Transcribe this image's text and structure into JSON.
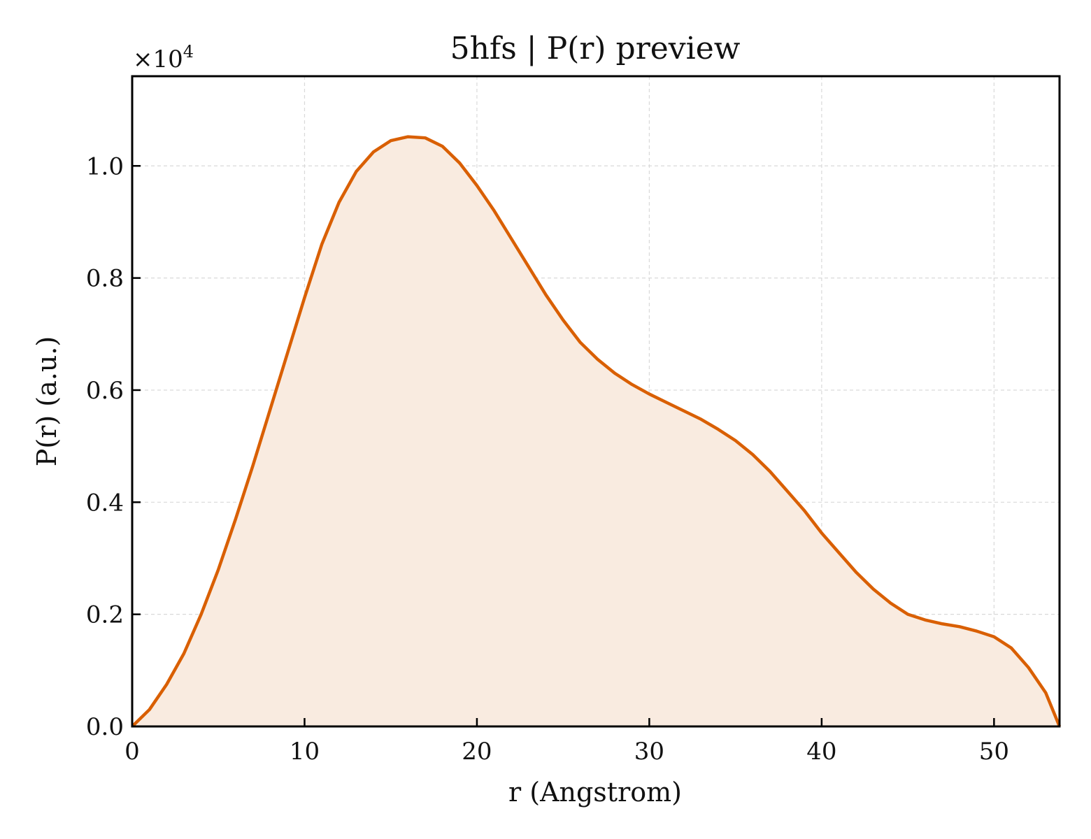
{
  "chart_data": {
    "type": "area",
    "title": "5hfs | P(r) preview",
    "xlabel": "r (Angstrom)",
    "ylabel": "P(r) (a.u.)",
    "y_multiplier": {
      "base": "×10",
      "exponent": "4"
    },
    "xlim": [
      0,
      53.8
    ],
    "ylim": [
      0,
      1.16
    ],
    "x_ticks": [
      0,
      10,
      20,
      30,
      40,
      50
    ],
    "x_tick_labels": [
      "0",
      "10",
      "20",
      "30",
      "40",
      "50"
    ],
    "y_ticks": [
      0.0,
      0.2,
      0.4,
      0.6,
      0.8,
      1.0
    ],
    "y_tick_labels": [
      "0.0",
      "0.2",
      "0.4",
      "0.6",
      "0.8",
      "1.0"
    ],
    "grid": true,
    "line_color": "#d95f02",
    "fill_color": "#f9ebe0",
    "series": [
      {
        "x": [
          0,
          1,
          2,
          3,
          4,
          5,
          6,
          7,
          8,
          9,
          10,
          11,
          12,
          13,
          14,
          15,
          16,
          17,
          18,
          19,
          20,
          21,
          22,
          23,
          24,
          25,
          26,
          27,
          28,
          29,
          30,
          31,
          32,
          33,
          34,
          35,
          36,
          37,
          38,
          39,
          40,
          41,
          42,
          43,
          44,
          45,
          46,
          47,
          48,
          49,
          50,
          51,
          52,
          53,
          53.8
        ],
        "y": [
          0.0,
          0.03,
          0.075,
          0.13,
          0.2,
          0.28,
          0.37,
          0.465,
          0.565,
          0.665,
          0.765,
          0.86,
          0.935,
          0.99,
          1.025,
          1.045,
          1.052,
          1.05,
          1.035,
          1.005,
          0.965,
          0.92,
          0.87,
          0.82,
          0.77,
          0.725,
          0.685,
          0.655,
          0.63,
          0.61,
          0.593,
          0.578,
          0.563,
          0.548,
          0.53,
          0.51,
          0.485,
          0.455,
          0.42,
          0.385,
          0.345,
          0.31,
          0.275,
          0.245,
          0.22,
          0.2,
          0.19,
          0.183,
          0.178,
          0.17,
          0.16,
          0.14,
          0.105,
          0.06,
          0.0
        ]
      }
    ]
  }
}
